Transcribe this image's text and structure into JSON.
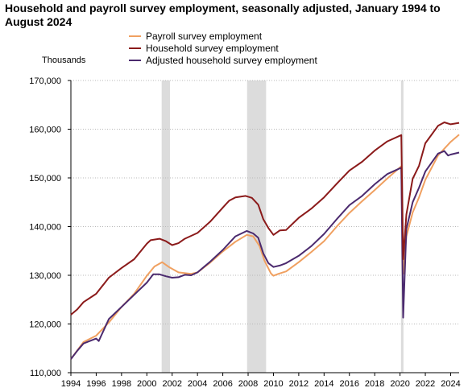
{
  "chart_data": {
    "type": "line",
    "title": "Household and payroll survey employment, seasonally adjusted, January 1994 to August 2024",
    "ylabel": "Thousands",
    "xlabel": "",
    "x_range": [
      1994.0,
      2024.67
    ],
    "ylim": [
      110000,
      170000
    ],
    "y_ticks": [
      110000,
      120000,
      130000,
      140000,
      150000,
      160000,
      170000
    ],
    "y_tick_labels": [
      "110,000",
      "120,000",
      "130,000",
      "140,000",
      "150,000",
      "160,000",
      "170,000"
    ],
    "x_ticks": [
      1994,
      1996,
      1998,
      2000,
      2002,
      2004,
      2006,
      2008,
      2010,
      2012,
      2014,
      2016,
      2018,
      2020,
      2022,
      2024
    ],
    "x_tick_labels": [
      "1994",
      "1996",
      "1998",
      "2000",
      "2002",
      "2004",
      "2006",
      "2008",
      "2010",
      "2012",
      "2014",
      "2016",
      "2018",
      "2020",
      "2022",
      "2024"
    ],
    "grid": {
      "horizontal": true,
      "style": "dotted"
    },
    "legend": {
      "placement": "top"
    },
    "recessions": [
      [
        2001.17,
        2001.83
      ],
      [
        2007.92,
        2009.42
      ],
      [
        2020.08,
        2020.25
      ]
    ],
    "series": [
      {
        "name": "Payroll survey employment",
        "color": "#f0a060",
        "points": [
          [
            1994.0,
            112800
          ],
          [
            1995.0,
            116300
          ],
          [
            1996.0,
            117600
          ],
          [
            1997.0,
            120300
          ],
          [
            1998.0,
            123500
          ],
          [
            1999.0,
            126200
          ],
          [
            2000.0,
            129900
          ],
          [
            2000.6,
            131800
          ],
          [
            2001.2,
            132700
          ],
          [
            2001.8,
            131600
          ],
          [
            2002.5,
            130600
          ],
          [
            2003.5,
            130300
          ],
          [
            2004.0,
            130600
          ],
          [
            2005.0,
            132600
          ],
          [
            2006.0,
            134900
          ],
          [
            2007.0,
            136900
          ],
          [
            2007.9,
            138300
          ],
          [
            2008.4,
            138000
          ],
          [
            2008.9,
            136000
          ],
          [
            2009.3,
            133000
          ],
          [
            2009.8,
            130400
          ],
          [
            2010.0,
            129900
          ],
          [
            2010.4,
            130300
          ],
          [
            2011.0,
            130800
          ],
          [
            2012.0,
            132700
          ],
          [
            2013.0,
            134800
          ],
          [
            2014.0,
            137000
          ],
          [
            2015.0,
            140000
          ],
          [
            2016.0,
            142800
          ],
          [
            2017.0,
            145200
          ],
          [
            2018.0,
            147500
          ],
          [
            2019.0,
            149900
          ],
          [
            2020.1,
            152400
          ],
          [
            2020.25,
            130300
          ],
          [
            2020.5,
            138000
          ],
          [
            2021.0,
            142900
          ],
          [
            2021.5,
            146000
          ],
          [
            2022.0,
            149600
          ],
          [
            2023.0,
            154600
          ],
          [
            2024.0,
            157400
          ],
          [
            2024.67,
            158900
          ]
        ]
      },
      {
        "name": "Household survey employment",
        "color": "#8b1a1a",
        "points": [
          [
            1994.0,
            121900
          ],
          [
            1994.5,
            123000
          ],
          [
            1995.0,
            124500
          ],
          [
            1996.0,
            126200
          ],
          [
            1997.0,
            129500
          ],
          [
            1998.0,
            131500
          ],
          [
            1999.0,
            133300
          ],
          [
            2000.0,
            136500
          ],
          [
            2000.3,
            137200
          ],
          [
            2001.0,
            137500
          ],
          [
            2001.5,
            137000
          ],
          [
            2002.0,
            136200
          ],
          [
            2002.5,
            136600
          ],
          [
            2003.0,
            137500
          ],
          [
            2004.0,
            138700
          ],
          [
            2005.0,
            141000
          ],
          [
            2006.0,
            143900
          ],
          [
            2006.5,
            145300
          ],
          [
            2007.0,
            146000
          ],
          [
            2007.8,
            146300
          ],
          [
            2008.3,
            145900
          ],
          [
            2008.8,
            144500
          ],
          [
            2009.2,
            141500
          ],
          [
            2009.6,
            139700
          ],
          [
            2010.0,
            138300
          ],
          [
            2010.5,
            139200
          ],
          [
            2011.0,
            139300
          ],
          [
            2012.0,
            141800
          ],
          [
            2013.0,
            143700
          ],
          [
            2014.0,
            146000
          ],
          [
            2015.0,
            148800
          ],
          [
            2016.0,
            151500
          ],
          [
            2017.0,
            153300
          ],
          [
            2018.0,
            155600
          ],
          [
            2019.0,
            157500
          ],
          [
            2020.1,
            158800
          ],
          [
            2020.25,
            133300
          ],
          [
            2020.5,
            142500
          ],
          [
            2021.0,
            149800
          ],
          [
            2021.5,
            152500
          ],
          [
            2022.0,
            157100
          ],
          [
            2023.0,
            160700
          ],
          [
            2023.5,
            161400
          ],
          [
            2024.0,
            161000
          ],
          [
            2024.67,
            161300
          ]
        ]
      },
      {
        "name": "Adjusted household survey employment",
        "color": "#4b2a6e",
        "points": [
          [
            1994.0,
            112800
          ],
          [
            1994.5,
            114500
          ],
          [
            1995.0,
            116000
          ],
          [
            1996.0,
            117000
          ],
          [
            1996.2,
            116500
          ],
          [
            1997.0,
            121000
          ],
          [
            1998.0,
            123500
          ],
          [
            1999.0,
            126000
          ],
          [
            2000.0,
            128500
          ],
          [
            2000.5,
            130200
          ],
          [
            2001.0,
            130200
          ],
          [
            2001.5,
            129800
          ],
          [
            2002.0,
            129500
          ],
          [
            2002.5,
            129600
          ],
          [
            2003.0,
            130100
          ],
          [
            2003.5,
            130000
          ],
          [
            2004.0,
            130600
          ],
          [
            2005.0,
            132800
          ],
          [
            2006.0,
            135200
          ],
          [
            2007.0,
            138000
          ],
          [
            2007.9,
            139100
          ],
          [
            2008.4,
            138600
          ],
          [
            2008.8,
            137700
          ],
          [
            2009.2,
            134500
          ],
          [
            2009.6,
            132500
          ],
          [
            2010.0,
            131700
          ],
          [
            2010.5,
            132000
          ],
          [
            2011.0,
            132500
          ],
          [
            2012.0,
            134000
          ],
          [
            2013.0,
            136000
          ],
          [
            2014.0,
            138500
          ],
          [
            2015.0,
            141500
          ],
          [
            2016.0,
            144400
          ],
          [
            2017.0,
            146300
          ],
          [
            2018.0,
            148700
          ],
          [
            2019.0,
            150800
          ],
          [
            2020.1,
            152100
          ],
          [
            2020.25,
            121300
          ],
          [
            2020.5,
            139500
          ],
          [
            2021.0,
            145000
          ],
          [
            2021.5,
            148000
          ],
          [
            2022.0,
            151300
          ],
          [
            2023.0,
            155000
          ],
          [
            2023.5,
            155500
          ],
          [
            2023.8,
            154600
          ],
          [
            2024.0,
            154800
          ],
          [
            2024.67,
            155200
          ]
        ]
      }
    ]
  }
}
